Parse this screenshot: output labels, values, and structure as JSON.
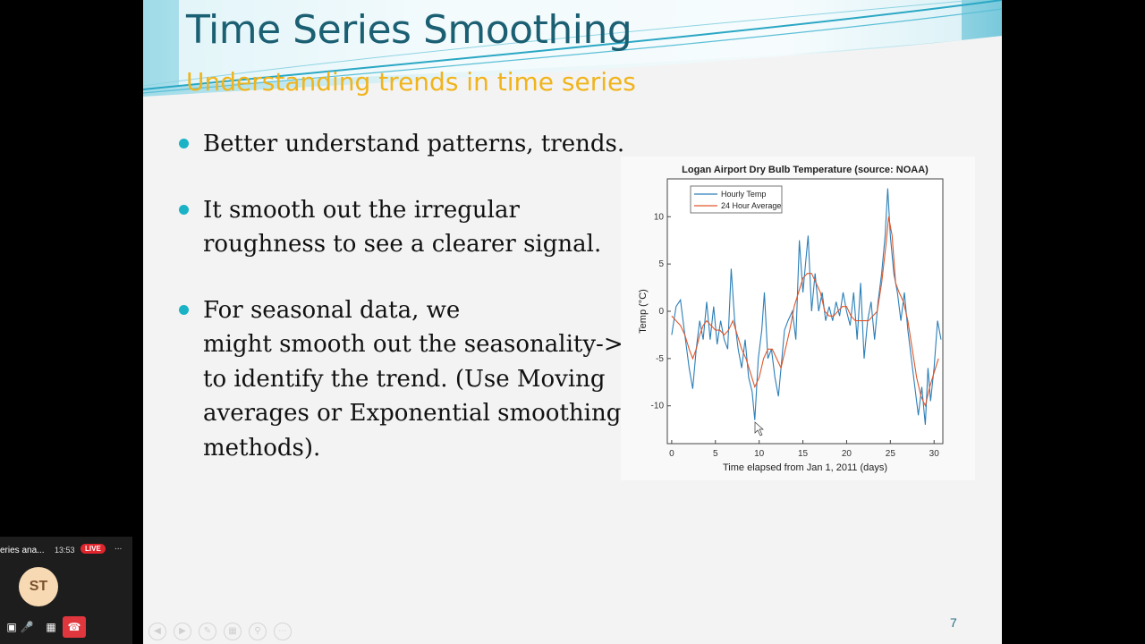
{
  "slide": {
    "title": "Time Series Smoothing",
    "subtitle": "Understanding trends in time series",
    "bullets": [
      {
        "lines": [
          "Better understand patterns, trends."
        ]
      },
      {
        "lines": [
          "It smooth out the irregular",
          "roughness to see a clearer signal."
        ]
      },
      {
        "lines": [
          "For seasonal data, we",
          "might smooth out the seasonality->",
          "to identify the trend. (Use Moving",
          "averages or Exponential smoothing",
          "methods)."
        ]
      }
    ],
    "page_number": "7",
    "colors": {
      "title": "#1b5f73",
      "subtitle": "#f0b41c",
      "bullet": "#1ab3c6"
    }
  },
  "chart_data": {
    "type": "line",
    "title": "Logan Airport Dry Bulb Temperature (source: NOAA)",
    "xlabel": "Time elapsed from Jan 1, 2011 (days)",
    "ylabel": "Temp (°C)",
    "xlim": [
      -0.5,
      31
    ],
    "ylim": [
      -14,
      14
    ],
    "xticks": [
      0,
      5,
      10,
      15,
      20,
      25,
      30
    ],
    "yticks": [
      10,
      5,
      0,
      -5,
      -10
    ],
    "legend_position": "top-left",
    "series": [
      {
        "name": "Hourly Temp",
        "color": "#2c7fb8",
        "points": [
          [
            0,
            -2.5
          ],
          [
            0.5,
            0.5
          ],
          [
            1,
            1.2
          ],
          [
            1.5,
            -2.5
          ],
          [
            2,
            -6
          ],
          [
            2.4,
            -8.2
          ],
          [
            2.8,
            -4
          ],
          [
            3.2,
            -1
          ],
          [
            3.6,
            -3
          ],
          [
            4,
            1
          ],
          [
            4.4,
            -3
          ],
          [
            4.8,
            0.5
          ],
          [
            5.2,
            -3.5
          ],
          [
            5.6,
            -1
          ],
          [
            6,
            -3
          ],
          [
            6.4,
            -4
          ],
          [
            6.8,
            4.5
          ],
          [
            7.2,
            -1
          ],
          [
            7.6,
            -4
          ],
          [
            8,
            -6
          ],
          [
            8.4,
            -3
          ],
          [
            8.8,
            -7
          ],
          [
            9.2,
            -8.5
          ],
          [
            9.5,
            -11.5
          ],
          [
            9.9,
            -5
          ],
          [
            10.3,
            -2
          ],
          [
            10.6,
            2
          ],
          [
            11,
            -5
          ],
          [
            11.4,
            -4
          ],
          [
            11.8,
            -7
          ],
          [
            12.2,
            -9
          ],
          [
            12.5,
            -6
          ],
          [
            12.9,
            -2
          ],
          [
            13.3,
            -1
          ],
          [
            13.8,
            0
          ],
          [
            14.2,
            -3
          ],
          [
            14.6,
            7.5
          ],
          [
            15,
            2
          ],
          [
            15.3,
            5
          ],
          [
            15.6,
            8
          ],
          [
            16,
            0
          ],
          [
            16.4,
            4
          ],
          [
            16.8,
            0
          ],
          [
            17.2,
            2
          ],
          [
            17.6,
            -1
          ],
          [
            18,
            0.5
          ],
          [
            18.4,
            -1
          ],
          [
            18.8,
            1
          ],
          [
            19.2,
            -0.5
          ],
          [
            19.6,
            2
          ],
          [
            20,
            0
          ],
          [
            20.4,
            -1.5
          ],
          [
            20.8,
            2
          ],
          [
            21.2,
            -3
          ],
          [
            21.6,
            3
          ],
          [
            22,
            -5
          ],
          [
            22.4,
            -1
          ],
          [
            22.8,
            1
          ],
          [
            23.2,
            -3
          ],
          [
            23.6,
            1
          ],
          [
            24,
            4
          ],
          [
            24.4,
            8
          ],
          [
            24.7,
            13
          ],
          [
            25,
            8
          ],
          [
            25.4,
            4
          ],
          [
            25.8,
            2
          ],
          [
            26.2,
            -1
          ],
          [
            26.6,
            2
          ],
          [
            27,
            -2
          ],
          [
            27.4,
            -5
          ],
          [
            27.8,
            -8
          ],
          [
            28.2,
            -11
          ],
          [
            28.6,
            -8
          ],
          [
            29,
            -12
          ],
          [
            29.3,
            -6
          ],
          [
            29.6,
            -9.5
          ],
          [
            30,
            -6
          ],
          [
            30.4,
            -1
          ],
          [
            30.8,
            -3
          ]
        ]
      },
      {
        "name": "24 Hour Average",
        "color": "#e0572a",
        "points": [
          [
            0,
            -0.5
          ],
          [
            0.5,
            -1
          ],
          [
            1,
            -1.5
          ],
          [
            1.5,
            -2.5
          ],
          [
            2,
            -4
          ],
          [
            2.4,
            -5
          ],
          [
            2.8,
            -4
          ],
          [
            3.2,
            -2.5
          ],
          [
            3.6,
            -1.5
          ],
          [
            4,
            -1
          ],
          [
            4.5,
            -1.5
          ],
          [
            5,
            -2
          ],
          [
            5.5,
            -2
          ],
          [
            6,
            -2.5
          ],
          [
            6.5,
            -2
          ],
          [
            7,
            -1
          ],
          [
            7.5,
            -2.5
          ],
          [
            8,
            -4
          ],
          [
            8.5,
            -5
          ],
          [
            9,
            -6.5
          ],
          [
            9.5,
            -8
          ],
          [
            10,
            -7
          ],
          [
            10.5,
            -5
          ],
          [
            11,
            -4
          ],
          [
            11.5,
            -4
          ],
          [
            12,
            -5
          ],
          [
            12.5,
            -6
          ],
          [
            13,
            -4
          ],
          [
            13.5,
            -2
          ],
          [
            14,
            0.5
          ],
          [
            14.5,
            2
          ],
          [
            15,
            3.5
          ],
          [
            15.5,
            4
          ],
          [
            16,
            4
          ],
          [
            16.5,
            3
          ],
          [
            17,
            2
          ],
          [
            17.5,
            0
          ],
          [
            18,
            -0.5
          ],
          [
            18.5,
            -0.5
          ],
          [
            19,
            0
          ],
          [
            19.5,
            0.5
          ],
          [
            20,
            0.5
          ],
          [
            20.5,
            -0.5
          ],
          [
            21,
            -1
          ],
          [
            21.5,
            -1
          ],
          [
            22,
            -1
          ],
          [
            22.5,
            -1
          ],
          [
            23,
            -0.5
          ],
          [
            23.5,
            0
          ],
          [
            24,
            3
          ],
          [
            24.5,
            7
          ],
          [
            24.8,
            10
          ],
          [
            25.2,
            8
          ],
          [
            25.6,
            3
          ],
          [
            26,
            2
          ],
          [
            26.5,
            1
          ],
          [
            27,
            -1
          ],
          [
            27.5,
            -4
          ],
          [
            28,
            -7
          ],
          [
            28.5,
            -9
          ],
          [
            29,
            -10
          ],
          [
            29.5,
            -8
          ],
          [
            30,
            -6.5
          ],
          [
            30.5,
            -5
          ]
        ]
      }
    ]
  },
  "toolbar": {
    "icons": [
      "prev-icon",
      "next-icon",
      "pen-icon",
      "slides-icon",
      "zoom-icon",
      "more-icon"
    ]
  },
  "meeting": {
    "title": "eries ana...",
    "time": "13:53",
    "live_label": "LIVE",
    "more_label": "...",
    "avatar_initials": "ST",
    "accent": "#e0252d"
  }
}
